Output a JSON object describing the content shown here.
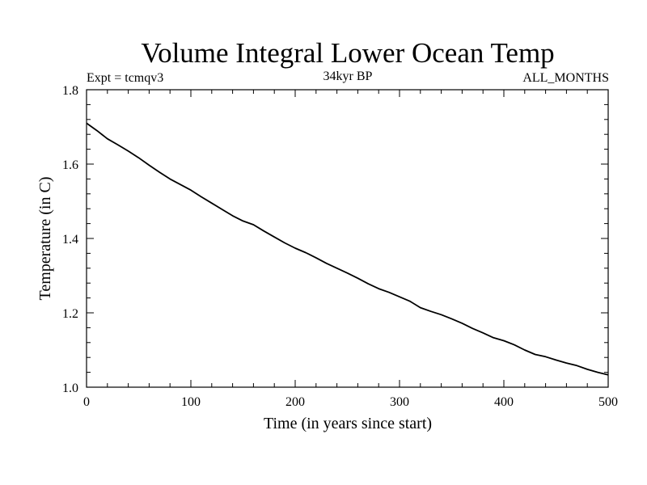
{
  "chart_data": {
    "type": "line",
    "title": "Volume Integral Lower Ocean Temp",
    "subtitle_left": "Expt = tcmqv3",
    "subtitle_center": "34kyr BP",
    "subtitle_right": "ALL_MONTHS",
    "xlabel": "Time (in years since start)",
    "ylabel": "Temperature (in C)",
    "xlim": [
      0,
      500
    ],
    "ylim": [
      1.0,
      1.8
    ],
    "x_ticks": [
      0,
      100,
      200,
      300,
      400,
      500
    ],
    "x_tick_labels": [
      "0",
      "100",
      "200",
      "300",
      "400",
      "500"
    ],
    "y_ticks": [
      1.0,
      1.2,
      1.4,
      1.6,
      1.8
    ],
    "y_tick_labels": [
      "1.0",
      "1.2",
      "1.4",
      "1.6",
      "1.8"
    ],
    "x_minor_step": 20,
    "y_minor_step": 0.04,
    "grid": false,
    "series": [
      {
        "color": "#000000",
        "x": [
          0,
          10,
          20,
          30,
          40,
          50,
          60,
          70,
          80,
          90,
          100,
          110,
          120,
          130,
          140,
          150,
          160,
          170,
          180,
          190,
          200,
          210,
          220,
          230,
          240,
          250,
          260,
          270,
          280,
          290,
          300,
          310,
          320,
          330,
          340,
          350,
          360,
          370,
          380,
          390,
          400,
          410,
          420,
          430,
          440,
          450,
          460,
          470,
          480,
          490,
          500
        ],
        "y": [
          1.71,
          1.69,
          1.668,
          1.652,
          1.635,
          1.617,
          1.597,
          1.578,
          1.56,
          1.545,
          1.53,
          1.512,
          1.495,
          1.478,
          1.461,
          1.447,
          1.437,
          1.42,
          1.404,
          1.388,
          1.374,
          1.362,
          1.348,
          1.333,
          1.32,
          1.307,
          1.293,
          1.278,
          1.265,
          1.255,
          1.243,
          1.231,
          1.214,
          1.204,
          1.195,
          1.184,
          1.172,
          1.158,
          1.146,
          1.133,
          1.125,
          1.114,
          1.1,
          1.088,
          1.082,
          1.073,
          1.065,
          1.058,
          1.048,
          1.04,
          1.033
        ]
      }
    ]
  }
}
